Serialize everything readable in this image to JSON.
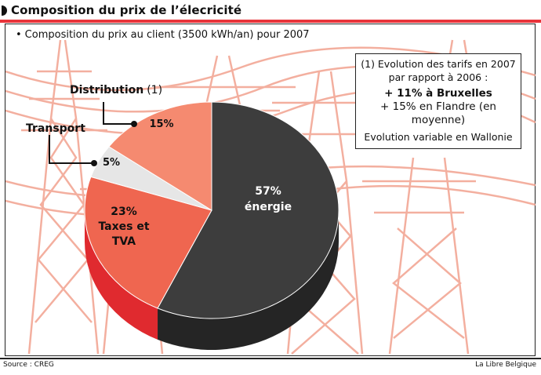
{
  "header": {
    "title": "Composition du prix de l’élecricité"
  },
  "subtitle": "Composition du prix au client (3500 kWh/an) pour 2007",
  "note": {
    "line1": "(1) Evolution des tarifs en 2007",
    "line2": "par rapport à 2006 :",
    "line3": "+ 11% à Bruxelles",
    "line4": "+ 15% en Flandre (en moyenne)",
    "line5": "Evolution variable en Wallonie"
  },
  "footer": {
    "source": "Source : CREG",
    "credit": "La Libre Belgique"
  },
  "colors": {
    "energie": "#3d3d3d",
    "taxes": "#ef6650",
    "transport": "#e6e6e6",
    "distribution": "#f58a70",
    "accent": "#e8343a",
    "pylon": "#f2a28f"
  },
  "chart_data": {
    "type": "pie",
    "title": "Composition du prix au client (3500 kWh/an) pour 2007",
    "slices": [
      {
        "key": "energie",
        "value": 57,
        "pct_label": "57%",
        "label": "énergie"
      },
      {
        "key": "taxes",
        "value": 23,
        "pct_label": "23%",
        "label_line1": "Taxes et",
        "label_line2": "TVA"
      },
      {
        "key": "transport",
        "value": 5,
        "pct_label": "5%",
        "label": "Transport"
      },
      {
        "key": "distribution",
        "value": 15,
        "pct_label": "15%",
        "label": "Distribution",
        "label_note": "(1)"
      }
    ]
  }
}
